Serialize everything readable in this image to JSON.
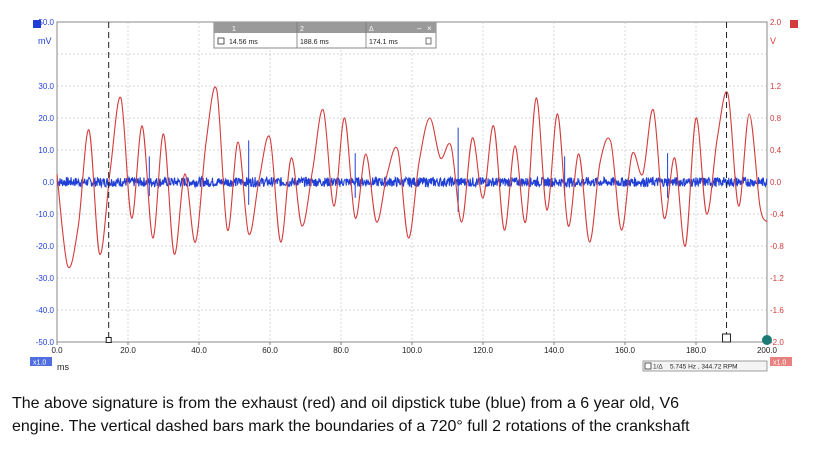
{
  "chart_data": {
    "type": "line",
    "x": {
      "unit": "ms",
      "range": [
        0,
        200
      ],
      "ticks": [
        "0.0",
        "20.0",
        "40.0",
        "60.0",
        "80.0",
        "100.0",
        "120.0",
        "140.0",
        "160.0",
        "180.0",
        "200.0"
      ],
      "zoom_label": "x1.0"
    },
    "y_left": {
      "unit": "mV",
      "range": [
        -50,
        50
      ],
      "ticks": [
        "50.0",
        "",
        "30.0",
        "20.0",
        "10.0",
        "0.0",
        "-10.0",
        "-20.0",
        "-30.0",
        "-40.0",
        "-50.0"
      ],
      "color": "#1f3fd6"
    },
    "y_right": {
      "unit": "V",
      "range": [
        -2,
        2
      ],
      "ticks": [
        "2.0",
        "",
        "1.2",
        "0.8",
        "0.4",
        "0.0",
        "-0.4",
        "-0.8",
        "-1.2",
        "-1.6",
        "-2.0"
      ],
      "color": "#d23c3c"
    },
    "grid": true,
    "series": [
      {
        "axis": "right",
        "color": "#d23c3c",
        "x": [
          0,
          3,
          6,
          9,
          12,
          15,
          18,
          21,
          24,
          27,
          30,
          33,
          36,
          39,
          42,
          45,
          48,
          51,
          54,
          57,
          60,
          63,
          66,
          69,
          72,
          75,
          78,
          81,
          84,
          87,
          90,
          93,
          96,
          99,
          102,
          105,
          108,
          111,
          114,
          117,
          120,
          123,
          126,
          129,
          132,
          135,
          138,
          141,
          144,
          147,
          150,
          153,
          156,
          159,
          162,
          165,
          168,
          171,
          174,
          177,
          180,
          183,
          186,
          189,
          192,
          195,
          198,
          200
        ],
        "values": [
          0.1,
          -1.05,
          -0.55,
          0.65,
          -0.9,
          0.15,
          1.05,
          -0.45,
          0.7,
          -0.7,
          0.6,
          -0.9,
          0.1,
          -0.75,
          0.5,
          1.15,
          -0.6,
          0.5,
          -0.65,
          0.05,
          0.55,
          -0.75,
          0.3,
          -0.55,
          0.15,
          0.9,
          -0.3,
          0.8,
          -0.45,
          0.35,
          -0.5,
          0.1,
          0.4,
          -0.7,
          0.25,
          0.8,
          0.3,
          0.45,
          -0.5,
          0.55,
          -0.2,
          0.7,
          -0.6,
          0.45,
          -0.5,
          1.05,
          -0.35,
          0.85,
          -0.55,
          0.35,
          -0.75,
          0.25,
          0.5,
          -0.6,
          0.35,
          0.1,
          0.9,
          -0.45,
          0.3,
          -0.8,
          0.8,
          -0.4,
          0.55,
          1.1,
          -0.3,
          0.85,
          -0.3,
          -0.5
        ]
      },
      {
        "axis": "left",
        "color": "#1f3fd6",
        "spikes_x": [
          26,
          54,
          84,
          113,
          143,
          172
        ],
        "spikes_y": [
          8,
          13,
          9,
          17,
          8,
          9
        ],
        "noise_amplitude": 1.5
      }
    ],
    "rulers": {
      "x": [
        14.56,
        188.6
      ],
      "delta": "174.1 ms"
    },
    "readout": {
      "col1": "1",
      "col2": "2",
      "col3": "Δ",
      "v1": "14.56 ms",
      "v2": "188.6 ms",
      "vd": "174.1 ms"
    },
    "frequency_readout": "5.745 Hz , 344.72 RPM",
    "freq_icon": "1/Δ",
    "left_zoom": "x1.0",
    "right_zoom": "x1.0"
  },
  "caption": {
    "line1": "The above signature is from the exhaust (red) and oil dipstick tube (blue) from a 6 year old, V6",
    "line2": "engine. The vertical dashed bars mark the boundaries of a 720° full 2 rotations of the crankshaft"
  }
}
